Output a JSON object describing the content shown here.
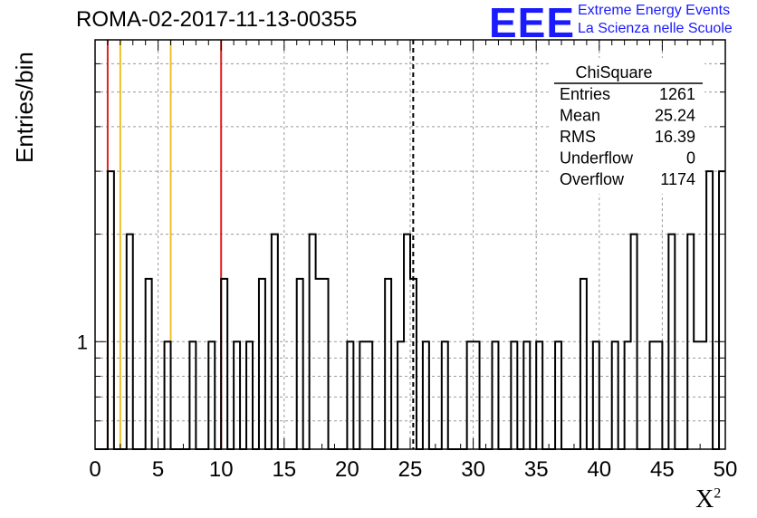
{
  "chart_data": {
    "type": "histogram",
    "title": "ROMA-02-2017-11-13-00355",
    "xlabel": "X",
    "xlabel_sup": "2",
    "ylabel": "Entries/bin",
    "xlim": [
      0,
      50
    ],
    "ylim": [
      0.5,
      7
    ],
    "yscale": "log",
    "xticks": [
      "0",
      "5",
      "10",
      "15",
      "20",
      "25",
      "30",
      "35",
      "40",
      "45",
      "50"
    ],
    "yticks": [
      "1"
    ],
    "grid": true,
    "bin_width": 0.5,
    "bin_counts": [
      0,
      0,
      3,
      0,
      0,
      2,
      0,
      0,
      1.5,
      0,
      0,
      1,
      0,
      0,
      0,
      1,
      0,
      0,
      1,
      0,
      1.5,
      0,
      1,
      0,
      1,
      0,
      1.5,
      0,
      2,
      0,
      0,
      0,
      1.5,
      0,
      2,
      1.5,
      1.5,
      0,
      0,
      0,
      1,
      0,
      1,
      1,
      0,
      0,
      1.5,
      0,
      1,
      2,
      1.5,
      0,
      1,
      0,
      0,
      1,
      0,
      0,
      0,
      1,
      1,
      0,
      0,
      1,
      0,
      0,
      1,
      0,
      1,
      0,
      1,
      0,
      0,
      1,
      0,
      0,
      0,
      1.5,
      0,
      1,
      0,
      0,
      1,
      0,
      1,
      2,
      0,
      0,
      1,
      1,
      0,
      2,
      0,
      0,
      2,
      1,
      1,
      3,
      0,
      3
    ],
    "vertical_lines": [
      {
        "x": 1,
        "color": "#dd2222",
        "style": "solid"
      },
      {
        "x": 2,
        "color": "#f0c020",
        "style": "solid"
      },
      {
        "x": 6,
        "color": "#f0c020",
        "style": "solid"
      },
      {
        "x": 10,
        "color": "#dd2222",
        "style": "solid"
      },
      {
        "x": 25.24,
        "color": "#000000",
        "style": "dashed"
      }
    ],
    "stats": {
      "title": "ChiSquare",
      "rows": [
        {
          "label": "Entries",
          "value": "1261"
        },
        {
          "label": "Mean",
          "value": "25.24"
        },
        {
          "label": "RMS",
          "value": "16.39"
        },
        {
          "label": "Underflow",
          "value": "0"
        },
        {
          "label": "Overflow",
          "value": "1174"
        }
      ]
    }
  },
  "logo": {
    "mark": "EEE",
    "line1": "Extreme Energy Events",
    "line2": "La Scienza nelle Scuole"
  }
}
